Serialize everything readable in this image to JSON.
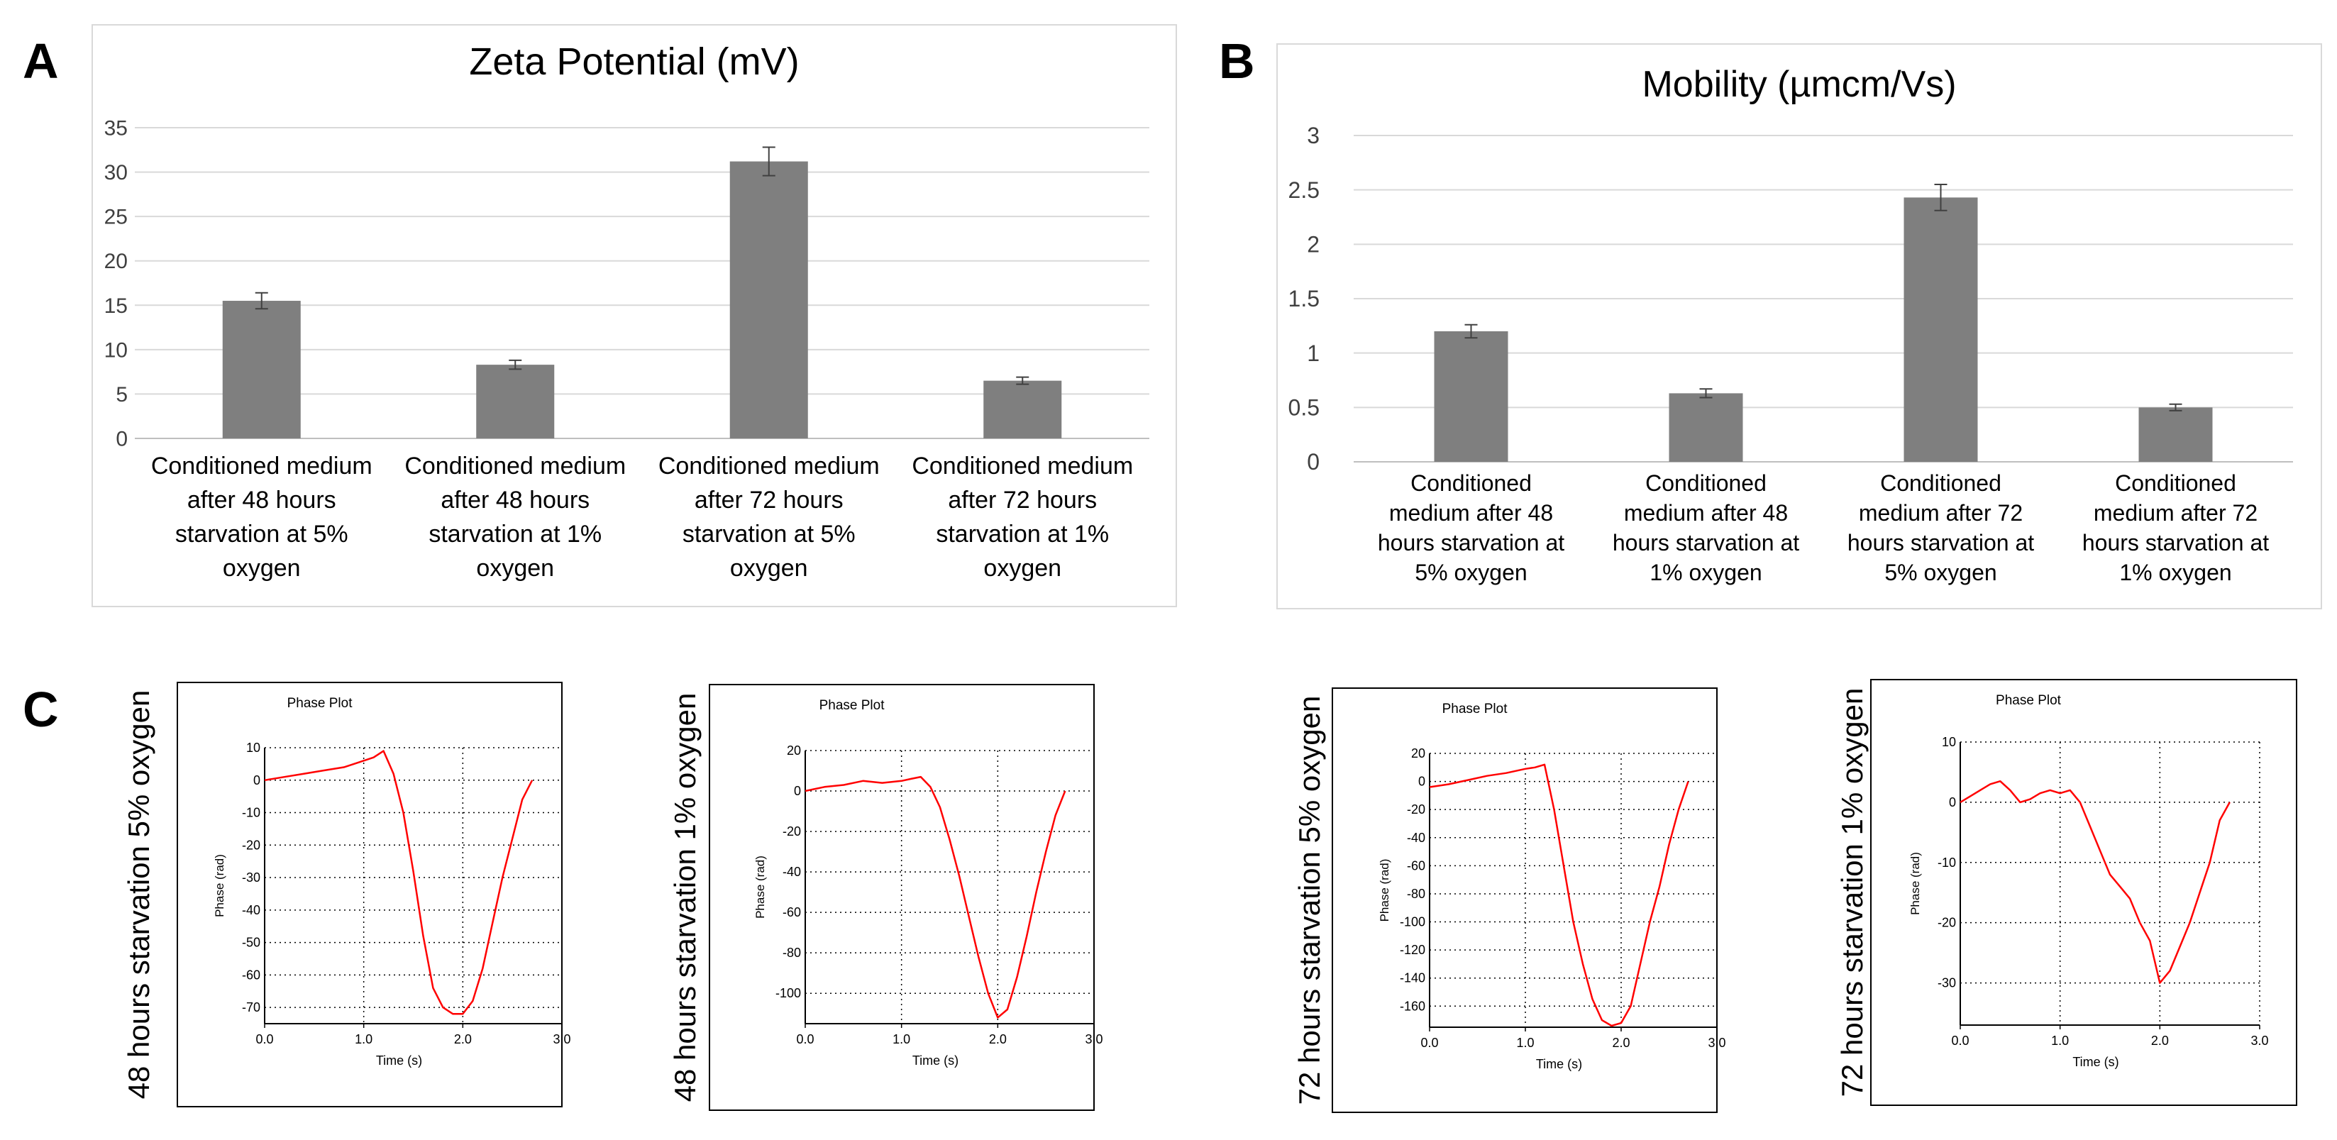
{
  "panels": {
    "a": "A",
    "b": "B",
    "c": "C"
  },
  "chart_data": [
    {
      "id": "A",
      "type": "bar",
      "title": "Zeta Potential (mV)",
      "xlabel": "",
      "ylabel": "",
      "ylim": [
        0,
        35
      ],
      "yticks": [
        "0",
        "5",
        "10",
        "15",
        "20",
        "25",
        "30",
        "35"
      ],
      "grid": true,
      "bar_color": "#7f7f7f",
      "categories": [
        [
          "Conditioned medium",
          "after  48 hours",
          "starvation  at 5%",
          "oxygen"
        ],
        [
          "Conditioned medium",
          "after  48 hours",
          "starvation  at 1%",
          "oxygen"
        ],
        [
          "Conditioned medium",
          "after   72 hours",
          "starvation  at 5%",
          "oxygen"
        ],
        [
          "Conditioned medium",
          "after   72 hours",
          "starvation  at 1%",
          "oxygen"
        ]
      ],
      "values": [
        15.5,
        8.3,
        31.2,
        6.5
      ],
      "errors": [
        0.9,
        0.5,
        1.6,
        0.4
      ]
    },
    {
      "id": "B",
      "type": "bar",
      "title": "Mobility (µmcm/Vs)",
      "xlabel": "",
      "ylabel": "",
      "ylim": [
        0,
        3
      ],
      "yticks": [
        "0",
        "0.5",
        "1",
        "1.5",
        "2",
        "2.5",
        "3"
      ],
      "grid": true,
      "bar_color": "#7f7f7f",
      "categories": [
        [
          "Conditioned",
          "medium after  48",
          "hours starvation  at",
          "5% oxygen"
        ],
        [
          "Conditioned",
          "medium after  48",
          "hours starvation  at",
          "1% oxygen"
        ],
        [
          "Conditioned",
          "medium after   72",
          "hours starvation  at",
          "5% oxygen"
        ],
        [
          "Conditioned",
          "medium after   72",
          "hours starvation  at",
          "1% oxygen"
        ]
      ],
      "values": [
        1.2,
        0.63,
        2.43,
        0.5
      ],
      "errors": [
        0.06,
        0.04,
        0.12,
        0.03
      ]
    },
    {
      "id": "C1",
      "type": "line",
      "title": "Phase Plot",
      "side_label": "48 hours starvation 5% oxygen",
      "xlabel": "Time (s)",
      "ylabel": "Phase (rad)",
      "xlim": [
        0,
        3
      ],
      "ylim": [
        -75,
        10
      ],
      "xticks": [
        0,
        1,
        2,
        3
      ],
      "xtick_labels": [
        "0.0",
        "1.0",
        "2.0",
        "3.0"
      ],
      "yticks": [
        10,
        0,
        -10,
        -20,
        -30,
        -40,
        -50,
        -60,
        -70
      ],
      "ytick_labels": [
        "10",
        "0",
        "-10",
        "-20",
        "-30",
        "-40",
        "-50",
        "-60",
        "-70"
      ],
      "line_color": "#ff0000",
      "x": [
        0,
        0.2,
        0.4,
        0.6,
        0.8,
        1.0,
        1.1,
        1.2,
        1.3,
        1.4,
        1.5,
        1.6,
        1.7,
        1.8,
        1.9,
        2.0,
        2.1,
        2.2,
        2.3,
        2.4,
        2.5,
        2.6,
        2.7
      ],
      "y": [
        0,
        1,
        2,
        3,
        4,
        6,
        7,
        9,
        2,
        -10,
        -28,
        -48,
        -64,
        -70,
        -72,
        -72,
        -68,
        -58,
        -44,
        -30,
        -18,
        -6,
        0
      ]
    },
    {
      "id": "C2",
      "type": "line",
      "title": "Phase Plot",
      "side_label": "48 hours starvation 1% oxygen",
      "xlabel": "Time (s)",
      "ylabel": "Phase (rad)",
      "xlim": [
        0,
        3
      ],
      "ylim": [
        -115,
        20
      ],
      "xticks": [
        0,
        1,
        2,
        3
      ],
      "xtick_labels": [
        "0.0",
        "1.0",
        "2.0",
        "3.0"
      ],
      "yticks": [
        20,
        0,
        -20,
        -40,
        -60,
        -80,
        -100
      ],
      "ytick_labels": [
        "20",
        "0",
        "-20",
        "-40",
        "-60",
        "-80",
        "-100"
      ],
      "line_color": "#ff0000",
      "x": [
        0,
        0.2,
        0.4,
        0.6,
        0.8,
        1.0,
        1.1,
        1.2,
        1.3,
        1.4,
        1.5,
        1.6,
        1.7,
        1.8,
        1.9,
        2.0,
        2.1,
        2.2,
        2.3,
        2.4,
        2.5,
        2.6,
        2.7
      ],
      "y": [
        0,
        2,
        3,
        5,
        4,
        5,
        6,
        7,
        2,
        -8,
        -24,
        -42,
        -62,
        -82,
        -100,
        -112,
        -108,
        -92,
        -72,
        -50,
        -30,
        -12,
        0
      ]
    },
    {
      "id": "C3",
      "type": "line",
      "title": "Phase Plot",
      "side_label": "72 hours starvation 5% oxygen",
      "xlabel": "Time (s)",
      "ylabel": "Phase (rad)",
      "xlim": [
        0,
        3
      ],
      "ylim": [
        -175,
        20
      ],
      "xticks": [
        0,
        1,
        2,
        3
      ],
      "xtick_labels": [
        "0.0",
        "1.0",
        "2.0",
        "3.0"
      ],
      "yticks": [
        20,
        0,
        -20,
        -40,
        -60,
        -80,
        -100,
        -120,
        -140,
        -160
      ],
      "ytick_labels": [
        "20",
        "0",
        "-20",
        "-40",
        "-60",
        "-80",
        "-100",
        "-120",
        "-140",
        "-160"
      ],
      "line_color": "#ff0000",
      "x": [
        0,
        0.2,
        0.4,
        0.6,
        0.8,
        1.0,
        1.1,
        1.2,
        1.3,
        1.4,
        1.5,
        1.6,
        1.7,
        1.8,
        1.9,
        2.0,
        2.1,
        2.2,
        2.3,
        2.4,
        2.5,
        2.6,
        2.7
      ],
      "y": [
        -4,
        -2,
        1,
        4,
        6,
        9,
        10,
        12,
        -20,
        -60,
        -100,
        -130,
        -155,
        -170,
        -174,
        -172,
        -160,
        -130,
        -100,
        -75,
        -45,
        -20,
        0
      ]
    },
    {
      "id": "C4",
      "type": "line",
      "title": "Phase Plot",
      "side_label": "72 hours starvation 1% oxygen",
      "xlabel": "Time (s)",
      "ylabel": "Phase (rad)",
      "xlim": [
        0,
        3
      ],
      "ylim": [
        -37,
        10
      ],
      "xticks": [
        0,
        1,
        2,
        3
      ],
      "xtick_labels": [
        "0.0",
        "1.0",
        "2.0",
        "3.0"
      ],
      "yticks": [
        10,
        0,
        -10,
        -20,
        -30
      ],
      "ytick_labels": [
        "10",
        "0",
        "-10",
        "-20",
        "-30"
      ],
      "line_color": "#ff0000",
      "x": [
        0,
        0.1,
        0.2,
        0.3,
        0.4,
        0.5,
        0.6,
        0.7,
        0.8,
        0.9,
        1.0,
        1.1,
        1.2,
        1.3,
        1.4,
        1.5,
        1.6,
        1.7,
        1.8,
        1.9,
        2.0,
        2.1,
        2.2,
        2.3,
        2.4,
        2.5,
        2.6,
        2.7
      ],
      "y": [
        0,
        1,
        2,
        3,
        3.5,
        2,
        0,
        0.5,
        1.5,
        2,
        1.5,
        2,
        0,
        -4,
        -8,
        -12,
        -14,
        -16,
        -20,
        -23,
        -30,
        -28,
        -24,
        -20,
        -15,
        -10,
        -3,
        0
      ]
    }
  ]
}
